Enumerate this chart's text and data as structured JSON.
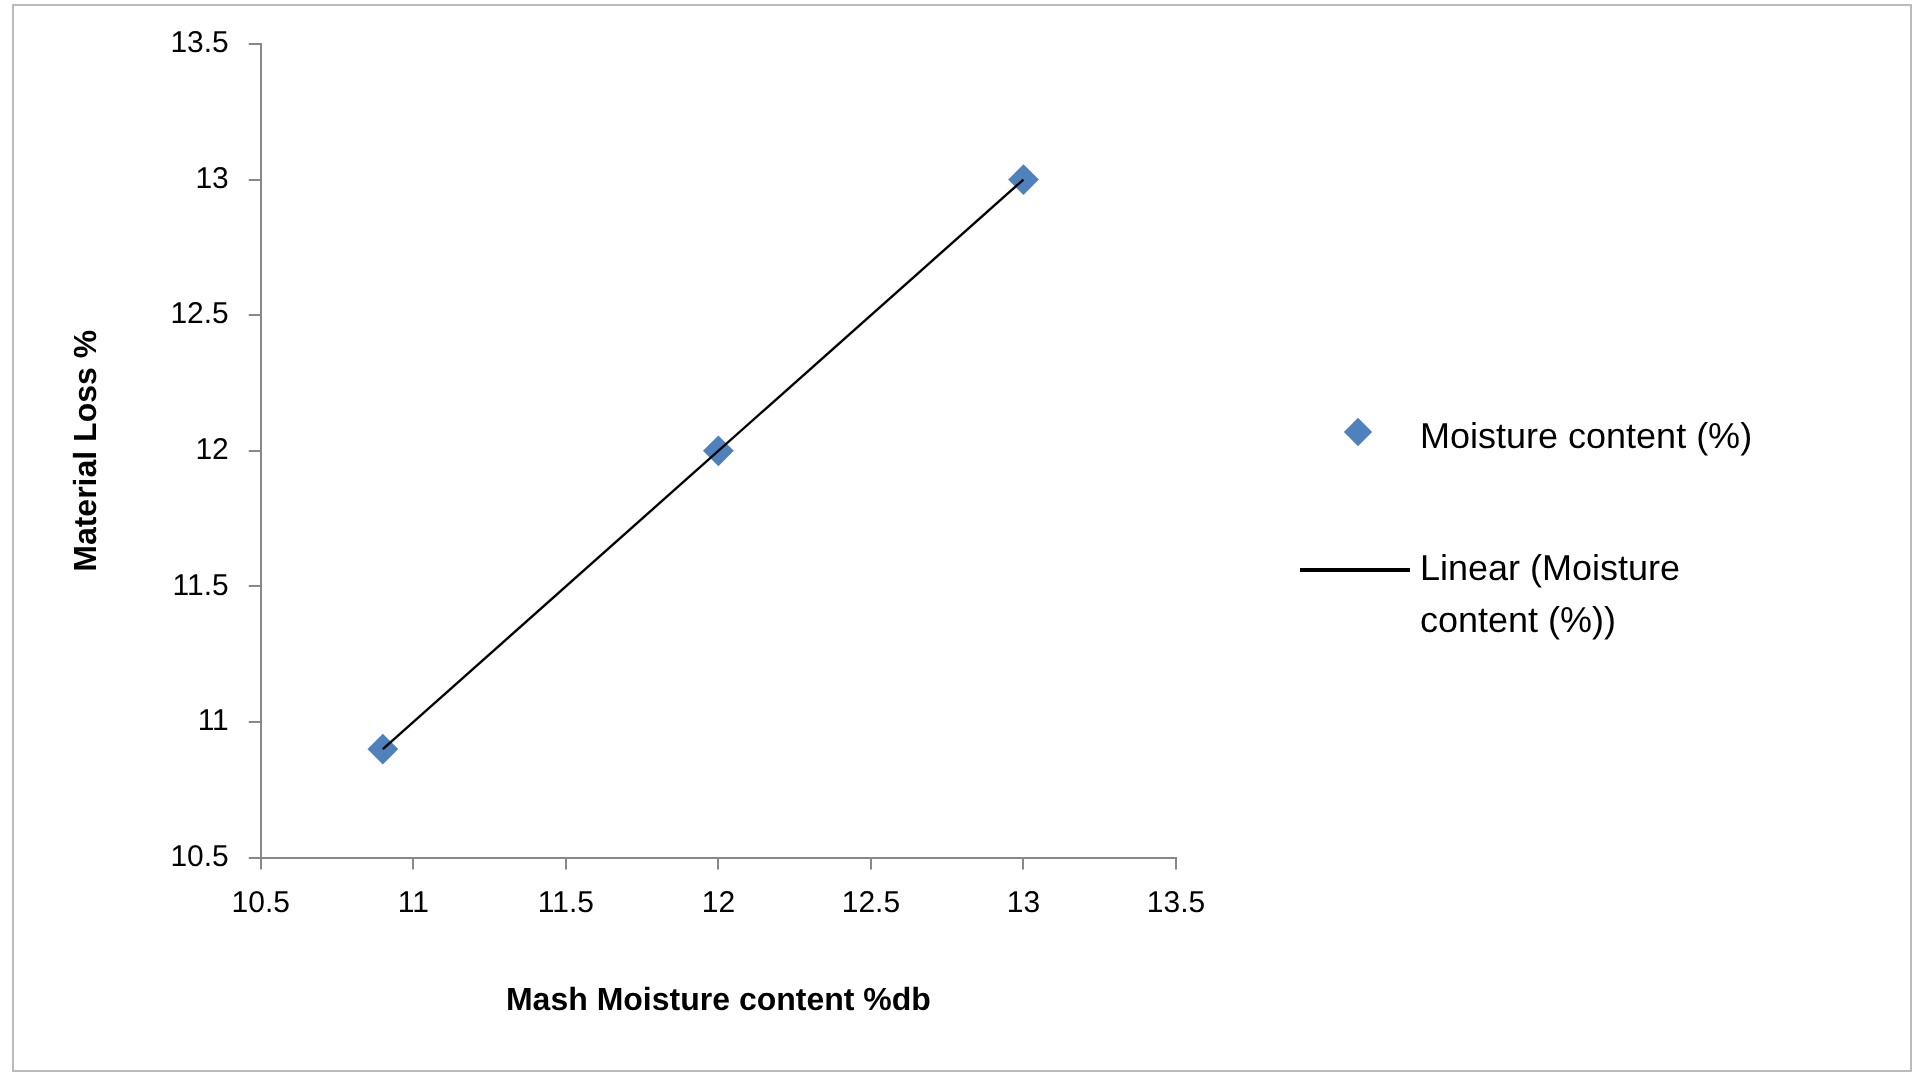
{
  "chart_data": {
    "type": "scatter",
    "xlabel": "Mash Moisture content %db",
    "ylabel": "Material Loss %",
    "x": [
      10.9,
      12,
      13
    ],
    "xlim": [
      10.5,
      13.5
    ],
    "xticks": [
      10.5,
      11,
      11.5,
      12,
      12.5,
      13,
      13.5
    ],
    "ylim": [
      10.5,
      13.5
    ],
    "yticks": [
      10.5,
      11,
      11.5,
      12,
      12.5,
      13,
      13.5
    ],
    "grid": false,
    "legend": "right",
    "series": [
      {
        "name": "Moisture content (%)",
        "color": "#4f81bd",
        "marker": "diamond",
        "values": [
          10.9,
          12,
          13
        ]
      },
      {
        "name": "Linear (Moisture content (%))",
        "type": "line",
        "marker": "none",
        "color": "#000000",
        "x": [
          10.9,
          13
        ],
        "values": [
          10.9,
          13
        ]
      }
    ]
  }
}
